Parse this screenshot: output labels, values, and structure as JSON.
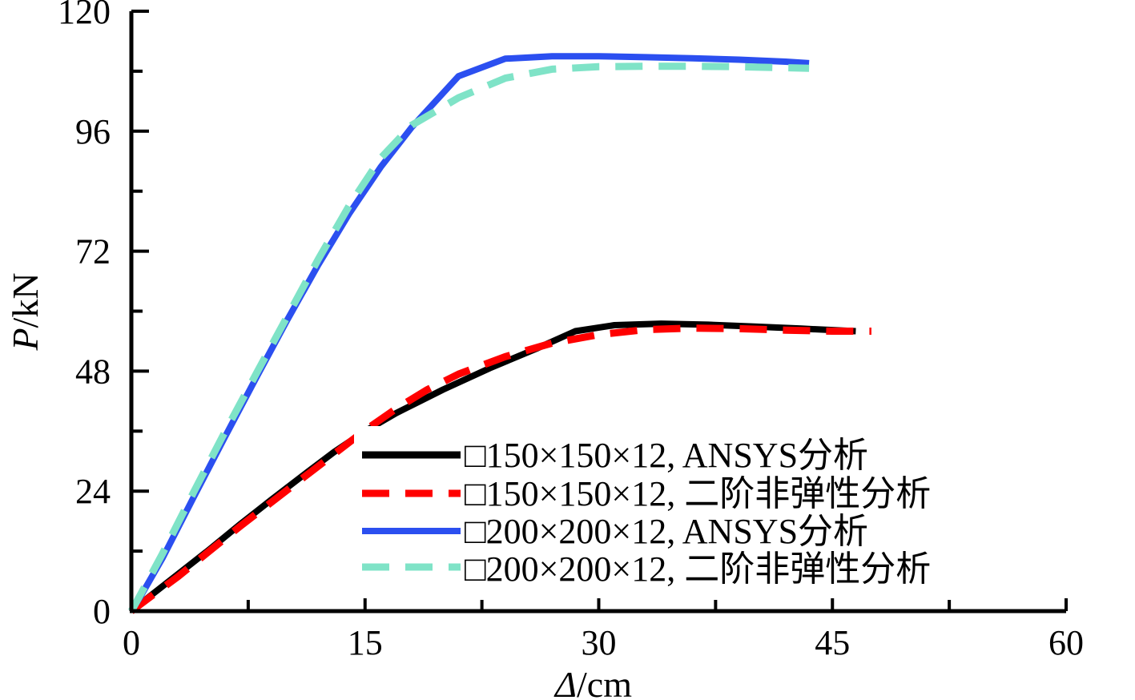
{
  "chart_data": {
    "type": "line",
    "title": "",
    "xlabel": {
      "symbol": "Δ",
      "unit": "/cm"
    },
    "ylabel": {
      "symbol": "P",
      "unit": "/kN"
    },
    "xlim": [
      0,
      60
    ],
    "ylim": [
      0,
      120
    ],
    "xticks": [
      0,
      15,
      30,
      45,
      60
    ],
    "yticks": [
      0,
      24,
      48,
      72,
      96,
      120
    ],
    "x_minor_step": 7.5,
    "y_minor_step": 12,
    "grid": false,
    "legend_position": "bottom-right",
    "series": [
      {
        "name": "□150×150×12, ANSYS分析",
        "color": "#000000",
        "style": "solid",
        "x": [
          0,
          1.2,
          3,
          5,
          7,
          9,
          11,
          13,
          15,
          17,
          20,
          23,
          26,
          28.5,
          31,
          34,
          37,
          40,
          43,
          46.5
        ],
        "y": [
          0,
          3,
          7.4,
          12.3,
          17.4,
          22.3,
          27.1,
          31.8,
          36,
          39.6,
          44.3,
          48.6,
          52.5,
          56,
          57.2,
          57.5,
          57.3,
          56.9,
          56.5,
          56
        ]
      },
      {
        "name": "□150×150×12, 二阶非弹性分析",
        "color": "#ff0000",
        "style": "dashed",
        "x": [
          0,
          1.2,
          3,
          5,
          7,
          9,
          11,
          13,
          15,
          17,
          19,
          21,
          24,
          27,
          30,
          33,
          36,
          39,
          42,
          45,
          47.5
        ],
        "y": [
          0,
          2.8,
          6.9,
          12,
          17,
          21.8,
          26.6,
          31.4,
          36.2,
          40.5,
          44.3,
          47.4,
          50.9,
          53.6,
          55.3,
          56.3,
          56.6,
          56.5,
          56.2,
          56,
          56
        ]
      },
      {
        "name": "□200×200×12, ANSYS分析",
        "color": "#2b4ff0",
        "style": "solid",
        "x": [
          0,
          0.6,
          2,
          4,
          6,
          8,
          10,
          12,
          14,
          16,
          18,
          21,
          24,
          27,
          30,
          33,
          36,
          39,
          42,
          43.5
        ],
        "y": [
          0,
          3,
          10.6,
          22.8,
          34.8,
          46.6,
          58.2,
          69.3,
          79.6,
          88.8,
          96.8,
          107,
          110.5,
          111,
          111,
          110.8,
          110.6,
          110.3,
          109.9,
          109.6
        ]
      },
      {
        "name": "□200×200×12, 二阶非弹性分析",
        "color": "#7fe3c7",
        "style": "dashed",
        "x": [
          0,
          0.6,
          2,
          4,
          6,
          8,
          10,
          12,
          14,
          16,
          18,
          21,
          24,
          27,
          30,
          33,
          36,
          39,
          43.5
        ],
        "y": [
          0,
          3.4,
          11.5,
          23.8,
          35.8,
          47.4,
          58.9,
          70.4,
          81.2,
          90.6,
          97.2,
          102.7,
          106.6,
          108.4,
          108.9,
          109,
          109,
          108.9,
          108.6
        ]
      }
    ]
  }
}
